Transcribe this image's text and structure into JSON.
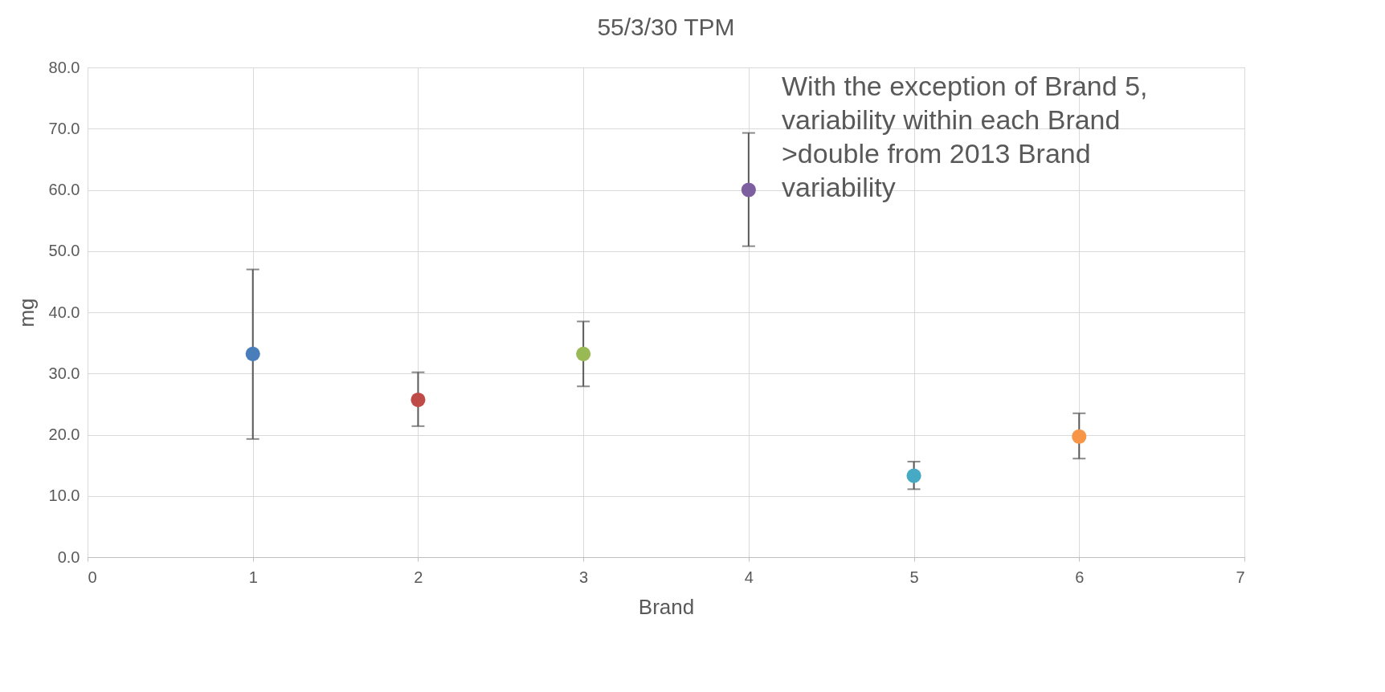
{
  "chart_data": {
    "type": "scatter",
    "title": "55/3/30 TPM",
    "xlabel": "Brand",
    "ylabel": "mg",
    "x": [
      1,
      2,
      3,
      4,
      5,
      6
    ],
    "series": [
      {
        "values": [
          33.2,
          25.7,
          33.2,
          60.0,
          13.3,
          19.7
        ],
        "colors": [
          "#4a7ebb",
          "#be4b48",
          "#98b954",
          "#7d5fa0",
          "#46aac5",
          "#f79646"
        ],
        "errors": [
          [
            19.3,
            47.0
          ],
          [
            21.4,
            30.2
          ],
          [
            27.9,
            38.5
          ],
          [
            50.8,
            69.3
          ],
          [
            11.1,
            15.6
          ],
          [
            16.1,
            23.5
          ]
        ]
      }
    ],
    "xlim": [
      0,
      7
    ],
    "xticks": [
      0,
      1,
      2,
      3,
      4,
      5,
      6,
      7
    ],
    "ylim": [
      0,
      80
    ],
    "yticks": [
      {
        "value": 0,
        "label": "0.0"
      },
      {
        "value": 10,
        "label": "10.0"
      },
      {
        "value": 20,
        "label": "20.0"
      },
      {
        "value": 30,
        "label": "30.0"
      },
      {
        "value": 40,
        "label": "40.0"
      },
      {
        "value": 50,
        "label": "50.0"
      },
      {
        "value": 60,
        "label": "60.0"
      },
      {
        "value": 70,
        "label": "70.0"
      },
      {
        "value": 80,
        "label": "80.0"
      }
    ],
    "grid": true,
    "marker": "circle",
    "annotations": [
      "With the exception of Brand 5, variability within each Brand >double from 2013 Brand variability"
    ]
  }
}
